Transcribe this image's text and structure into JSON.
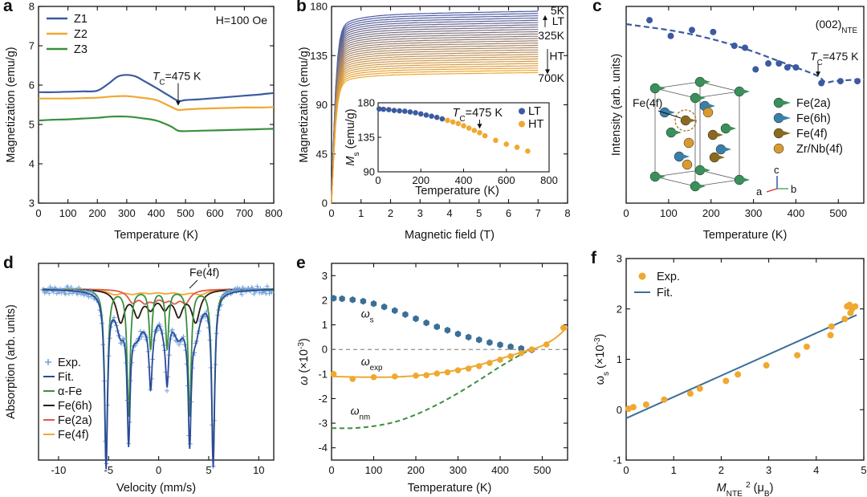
{
  "panels": [
    {
      "letter": "a",
      "type": "line",
      "xlabel": "Temperature (K)",
      "ylabel": "Magnetization (emu/g)",
      "xlim": [
        0,
        800
      ],
      "ylim": [
        3,
        8
      ],
      "xticks": [
        0,
        100,
        200,
        300,
        400,
        500,
        600,
        700,
        800
      ],
      "yticks": [
        3,
        4,
        5,
        6,
        7,
        8
      ],
      "legend": "top-left",
      "series": [
        {
          "name": "Z1",
          "color": "#3b5aa0",
          "x": [
            0,
            50,
            100,
            150,
            200,
            240,
            270,
            300,
            330,
            360,
            400,
            440,
            475,
            500,
            550,
            600,
            650,
            700,
            750,
            800
          ],
          "y": [
            5.82,
            5.82,
            5.83,
            5.84,
            5.86,
            6.05,
            6.22,
            6.26,
            6.22,
            6.1,
            5.93,
            5.75,
            5.6,
            5.62,
            5.64,
            5.67,
            5.7,
            5.73,
            5.76,
            5.8
          ]
        },
        {
          "name": "Z2",
          "color": "#f0a830",
          "x": [
            0,
            50,
            100,
            150,
            200,
            250,
            300,
            350,
            400,
            450,
            475,
            500,
            550,
            600,
            650,
            700,
            750,
            800
          ],
          "y": [
            5.66,
            5.66,
            5.66,
            5.67,
            5.68,
            5.71,
            5.72,
            5.68,
            5.62,
            5.45,
            5.37,
            5.38,
            5.4,
            5.41,
            5.42,
            5.43,
            5.43,
            5.44
          ]
        },
        {
          "name": "Z3",
          "color": "#3a8f3f",
          "x": [
            0,
            50,
            100,
            150,
            200,
            250,
            300,
            350,
            400,
            450,
            475,
            500,
            550,
            600,
            650,
            700,
            750,
            800
          ],
          "y": [
            5.1,
            5.12,
            5.13,
            5.15,
            5.17,
            5.2,
            5.2,
            5.16,
            5.1,
            4.95,
            4.84,
            4.83,
            4.84,
            4.85,
            4.86,
            4.87,
            4.88,
            4.89
          ]
        }
      ],
      "annotations": [
        {
          "text": "H=100 Oe"
        },
        {
          "text": "T",
          "sub": "C",
          "rest": "=475 K",
          "x": 475,
          "y": 5.6
        }
      ]
    },
    {
      "letter": "b",
      "type": "line",
      "xlabel": "Magnetic field (T)",
      "ylabel": "Magnetization (emu/g)",
      "xlim": [
        0,
        8
      ],
      "ylim": [
        0,
        180
      ],
      "xticks": [
        0,
        1,
        2,
        3,
        4,
        5,
        6,
        7,
        8
      ],
      "yticks": [
        0,
        45,
        90,
        135,
        180
      ],
      "curves": {
        "count": 28,
        "low_temp": "5K",
        "high_temp": "700K",
        "mid_temp": "325K",
        "ms_min": 117,
        "ms_max": 172,
        "color_low": "#4a5aa8",
        "color_high": "#f0a830"
      },
      "labels": [
        "5K",
        "LT",
        "325K",
        "HT",
        "700K"
      ],
      "inset": {
        "xlabel": "Temperature (K)",
        "ylabel_main": "M",
        "ylabel_sub": "s",
        "ylabel_rest": " (emu/g)",
        "xlim": [
          0,
          800
        ],
        "ylim": [
          90,
          180
        ],
        "xticks": [
          0,
          200,
          400,
          600,
          800
        ],
        "yticks": [
          90,
          135,
          180
        ],
        "annotation": {
          "text": "T",
          "sub": "C",
          "rest": "=475 K",
          "x": 475
        },
        "series": [
          {
            "name": "LT",
            "color": "#3b5aa0",
            "x": [
              5,
              25,
              50,
              75,
              100,
              125,
              150,
              175,
              200,
              225,
              250,
              275,
              300
            ],
            "y": [
              172,
              171.5,
              171,
              170,
              169.5,
              169,
              168,
              167,
              165.5,
              164,
              162.5,
              161,
              159
            ]
          },
          {
            "name": "HT",
            "color": "#f0a830",
            "x": [
              325,
              350,
              375,
              400,
              425,
              450,
              475,
              500,
              550,
              600,
              650,
              700
            ],
            "y": [
              157,
              155,
              153,
              150,
              147,
              144,
              141,
              137,
              131,
              126,
              122,
              117
            ]
          }
        ]
      }
    },
    {
      "letter": "c",
      "type": "scatter",
      "xlabel": "Temperature (K)",
      "ylabel": "Intensity (arb. units)",
      "xlim": [
        0,
        560
      ],
      "ylim": [
        0,
        1
      ],
      "xticks": [
        0,
        100,
        200,
        300,
        400,
        500
      ],
      "title": "(002)",
      "title_sub": "NTE",
      "annotation": {
        "text": "T",
        "sub": "C",
        "rest": "=475 K",
        "x": 475
      },
      "series": [
        {
          "name": "",
          "color": "#3b5aa0",
          "x": [
            55,
            105,
            155,
            205,
            255,
            280,
            305,
            335,
            360,
            380,
            400,
            460,
            505,
            545
          ],
          "y": [
            0.93,
            0.85,
            0.88,
            0.87,
            0.8,
            0.79,
            0.68,
            0.71,
            0.71,
            0.69,
            0.69,
            0.61,
            0.62,
            0.62
          ]
        }
      ],
      "fit": {
        "x": [
          0,
          50,
          100,
          150,
          200,
          250,
          300,
          350,
          400,
          450,
          470,
          490,
          520,
          560
        ],
        "y": [
          0.91,
          0.895,
          0.88,
          0.86,
          0.835,
          0.805,
          0.77,
          0.73,
          0.69,
          0.648,
          0.615,
          0.62,
          0.625,
          0.63
        ]
      },
      "structure": {
        "atom_label": "Fe(4f)",
        "legend": [
          "Fe(2a)",
          "Fe(6h)",
          "Fe(4f)",
          "Zr/Nb(4f)"
        ],
        "colors": [
          "#3a8f5a",
          "#3a7fa8",
          "#8a6a20",
          "#d89a30"
        ],
        "axes": [
          "c",
          "a",
          "b"
        ]
      }
    },
    {
      "letter": "d",
      "type": "line",
      "xlabel": "Velocity (mm/s)",
      "ylabel": "Absorption (arb. units)",
      "xlim": [
        -12,
        11.5
      ],
      "ylim": [
        0,
        1
      ],
      "xticks": [
        -10,
        -5,
        0,
        5,
        10
      ],
      "legend": "bottom-left",
      "label_fe4f": "Fe(4f)",
      "components": [
        {
          "name": "Exp.",
          "color": "#6fa0d8"
        },
        {
          "name": "Fit.",
          "color": "#2a4a9a"
        },
        {
          "name": "α-Fe",
          "color": "#3a8f3f",
          "peaks": [
            -5.25,
            -3.0,
            -0.8,
            0.85,
            3.1,
            5.45
          ],
          "depth": [
            0.87,
            0.64,
            0.3,
            0.3,
            0.64,
            0.87
          ],
          "width": 0.18
        },
        {
          "name": "Fe(6h)",
          "color": "#2a1a10",
          "peaks": [
            -3.8,
            -2.1,
            -0.8,
            0.6,
            2.0,
            3.7
          ],
          "depth": [
            0.16,
            0.12,
            0.08,
            0.08,
            0.12,
            0.16
          ],
          "width": 0.5
        },
        {
          "name": "Fe(2a)",
          "color": "#e05a4a",
          "peaks": [
            -2.6,
            -1.4,
            -0.5,
            0.6,
            1.6,
            2.7
          ],
          "depth": [
            0.06,
            0.05,
            0.04,
            0.04,
            0.05,
            0.06
          ],
          "width": 0.55
        },
        {
          "name": "Fe(4f)",
          "color": "#f0a830",
          "peaks": [
            -4.4,
            -2.6,
            -0.9,
            0.7,
            2.4,
            4.2
          ],
          "depth": [
            0.025,
            0.02,
            0.015,
            0.015,
            0.02,
            0.025
          ],
          "width": 0.8
        }
      ]
    },
    {
      "letter": "e",
      "type": "line",
      "xlabel": "Temperature (K)",
      "ylabel_main": "ω",
      "ylabel_rest": " (×10",
      "ylabel_sup": "-3",
      "ylabel_end": ")",
      "xlim": [
        0,
        560
      ],
      "ylim": [
        -4.5,
        3.5
      ],
      "xticks": [
        0,
        100,
        200,
        300,
        400,
        500
      ],
      "yticks": [
        -4,
        -3,
        -2,
        -1,
        0,
        1,
        2,
        3
      ],
      "series": [
        {
          "name": "ω",
          "sub": "s",
          "color": "#3a6f98",
          "x": [
            5,
            25,
            50,
            75,
            100,
            125,
            150,
            175,
            200,
            225,
            250,
            275,
            300,
            325,
            350,
            375,
            400,
            425,
            450,
            475
          ],
          "y": [
            2.08,
            2.06,
            2.02,
            1.96,
            1.86,
            1.73,
            1.58,
            1.42,
            1.25,
            1.08,
            0.92,
            0.78,
            0.63,
            0.5,
            0.39,
            0.28,
            0.19,
            0.11,
            0.04,
            -0.02
          ]
        },
        {
          "name": "ω",
          "sub": "exp",
          "color": "#f0a830",
          "x": [
            5,
            50,
            100,
            150,
            200,
            225,
            250,
            275,
            300,
            325,
            350,
            375,
            400,
            425,
            450,
            475,
            510,
            550
          ],
          "y": [
            -1.0,
            -1.2,
            -1.13,
            -1.1,
            -1.07,
            -1.05,
            -0.98,
            -0.93,
            -0.85,
            -0.78,
            -0.68,
            -0.55,
            -0.42,
            -0.28,
            -0.15,
            0.0,
            0.2,
            0.88
          ]
        }
      ],
      "fit_exp": {
        "x": [
          0,
          50,
          100,
          150,
          200,
          250,
          300,
          350,
          400,
          450,
          475,
          500,
          530,
          560
        ],
        "y": [
          -1.1,
          -1.12,
          -1.13,
          -1.12,
          -1.07,
          -0.97,
          -0.83,
          -0.63,
          -0.38,
          -0.12,
          0.0,
          0.15,
          0.45,
          0.9
        ]
      },
      "omega_nm": {
        "name": "ω",
        "sub": "nm",
        "color": "#3a8f3f",
        "x": [
          0,
          50,
          100,
          150,
          200,
          250,
          300,
          350,
          400,
          450,
          475
        ],
        "y": [
          -3.2,
          -3.2,
          -3.12,
          -2.95,
          -2.65,
          -2.25,
          -1.78,
          -1.25,
          -0.7,
          -0.2,
          0.0
        ]
      }
    },
    {
      "letter": "f",
      "type": "scatter",
      "xlabel_main": "M",
      "xlabel_sub": "NTE",
      "xlabel_sup": "2",
      "xlabel_rest": " (μ",
      "xlabel_sub2": "B",
      "xlabel_end": "",
      "ylabel_main": "ω",
      "ylabel_sub": "s",
      "ylabel_rest": " (×10",
      "ylabel_sup": "-3",
      "ylabel_end": ")",
      "xlim": [
        0,
        5
      ],
      "ylim": [
        -1,
        3
      ],
      "xticks": [
        0,
        1,
        2,
        3,
        4,
        5
      ],
      "yticks": [
        -1,
        0,
        1,
        2,
        3
      ],
      "legend": "top-left",
      "series": [
        {
          "name": "Exp.",
          "color": "#f0a830",
          "x": [
            0.05,
            0.15,
            0.42,
            0.8,
            1.35,
            1.55,
            2.1,
            2.35,
            2.95,
            3.6,
            3.8,
            4.3,
            4.32,
            4.6,
            4.65,
            4.7,
            4.72,
            4.75,
            4.82
          ],
          "y": [
            0.02,
            0.05,
            0.1,
            0.2,
            0.32,
            0.42,
            0.57,
            0.7,
            0.88,
            1.08,
            1.25,
            1.48,
            1.65,
            1.8,
            2.05,
            2.08,
            1.92,
            2.0,
            2.05
          ]
        }
      ],
      "fit": {
        "name": "Fit.",
        "color": "#3a6f98",
        "x": [
          0,
          4.85
        ],
        "y": [
          -0.17,
          1.88
        ]
      }
    }
  ]
}
